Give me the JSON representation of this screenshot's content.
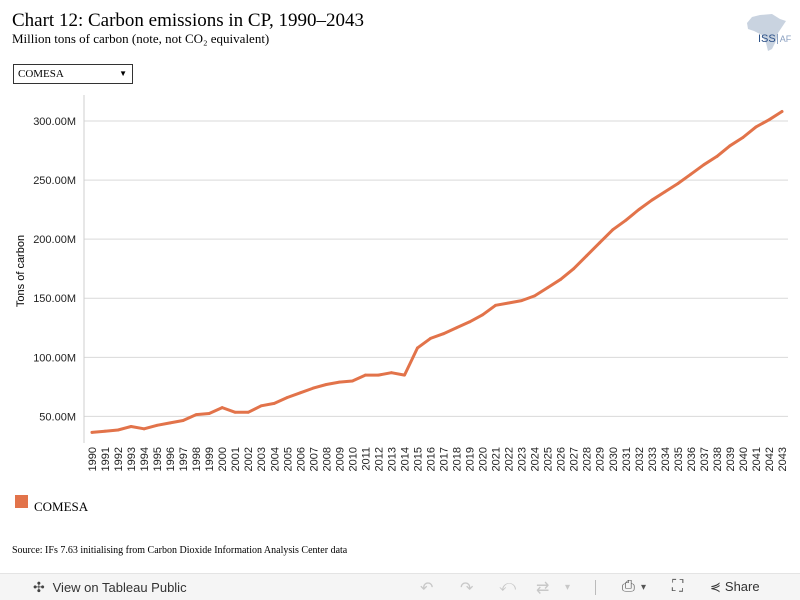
{
  "header": {
    "title": "Chart 12: Carbon emissions in CP, 1990–2043",
    "subtitle": "Million tons of carbon (note, not CO₂ equivalent)"
  },
  "logo": {
    "text": "ISS",
    "suffix": "AF"
  },
  "filter": {
    "selected": "COMESA"
  },
  "chart_data": {
    "type": "line",
    "x": [
      1990,
      1991,
      1992,
      1993,
      1994,
      1995,
      1996,
      1997,
      1998,
      1999,
      2000,
      2001,
      2002,
      2003,
      2004,
      2005,
      2006,
      2007,
      2008,
      2009,
      2010,
      2011,
      2012,
      2013,
      2014,
      2015,
      2016,
      2017,
      2018,
      2019,
      2020,
      2021,
      2022,
      2023,
      2024,
      2025,
      2026,
      2027,
      2028,
      2029,
      2030,
      2031,
      2032,
      2033,
      2034,
      2035,
      2036,
      2037,
      2038,
      2039,
      2040,
      2041,
      2042,
      2043
    ],
    "series": [
      {
        "name": "COMESA",
        "color": "#e2734a",
        "values": [
          36.5,
          37.5,
          38.5,
          41.5,
          39.5,
          42.5,
          44.5,
          46.5,
          51.5,
          52.5,
          57.5,
          53.5,
          53.5,
          59,
          61,
          66,
          70,
          74,
          77,
          79,
          80,
          85,
          85,
          87,
          85,
          108,
          116,
          120,
          125,
          130,
          136,
          144,
          146,
          148,
          152,
          159,
          166,
          175,
          186,
          197,
          208,
          216,
          225,
          233,
          240,
          247,
          255,
          263,
          270,
          279,
          286,
          295,
          301,
          308
        ],
        "line_width": 3
      }
    ],
    "ylabel": "Tons of carbon",
    "xlabel": "",
    "yticks": [
      50,
      100,
      150,
      200,
      250,
      300
    ],
    "ytick_labels": [
      "50.00M",
      "100.00M",
      "150.00M",
      "200.00M",
      "250.00M",
      "300.00M"
    ],
    "ylim": [
      27.5,
      322
    ],
    "grid": true
  },
  "legend": {
    "label": "COMESA",
    "color": "#e2734a"
  },
  "source": "Source: IFs 7.63 initialising from Carbon Dioxide Information Analysis Center data",
  "footer": {
    "view_label": "View on Tableau Public",
    "share_label": "Share",
    "icons": [
      "undo-icon",
      "redo-icon",
      "revert-icon",
      "refresh-icon",
      "download-icon",
      "fullscreen-icon",
      "share-icon"
    ]
  }
}
